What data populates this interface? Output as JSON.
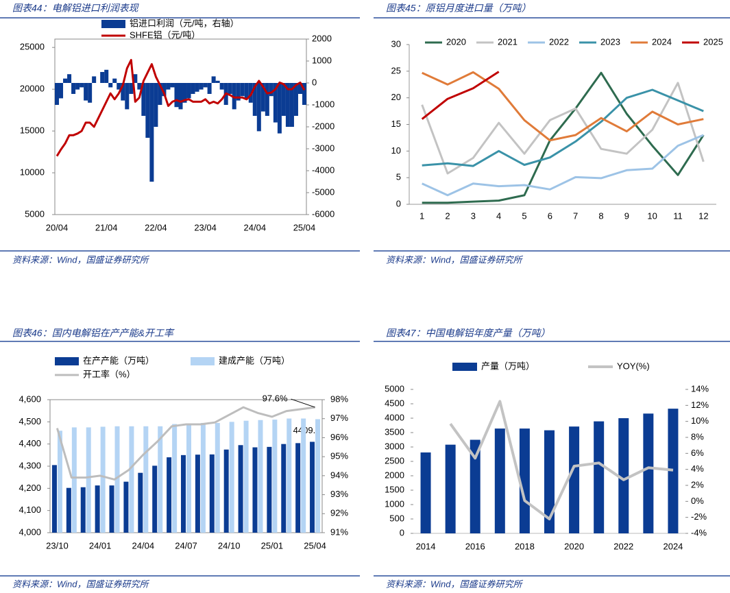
{
  "chart_data": [
    {
      "type": "combo",
      "title": "图表44：电解铝进口利润表现",
      "source": "资料来源：Wind，国盛证券研究所",
      "categories": [
        "20/04",
        null,
        null,
        null,
        null,
        null,
        null,
        null,
        null,
        null,
        null,
        null,
        "21/04",
        null,
        null,
        null,
        null,
        null,
        null,
        null,
        null,
        null,
        null,
        null,
        "22/04",
        null,
        null,
        null,
        null,
        null,
        null,
        null,
        null,
        null,
        null,
        null,
        "23/04",
        null,
        null,
        null,
        null,
        null,
        null,
        null,
        null,
        null,
        null,
        null,
        "24/04",
        null,
        null,
        null,
        null,
        null,
        null,
        null,
        null,
        null,
        null,
        null,
        "25/04"
      ],
      "series": [
        {
          "name": "铝进口利润（元/吨，右轴）",
          "type": "bar",
          "axis": "y2",
          "color": "#0b3c93",
          "values": [
            -1000,
            -700,
            200,
            400,
            -500,
            -300,
            -200,
            -800,
            -900,
            300,
            0,
            500,
            600,
            -200,
            200,
            -300,
            -800,
            -1200,
            -500,
            400,
            -300,
            -1500,
            -2500,
            -4500,
            -2000,
            -1000,
            -600,
            -300,
            -200,
            -1100,
            -1200,
            -900,
            -700,
            -500,
            -400,
            -300,
            -200,
            -500,
            300,
            100,
            -300,
            -1000,
            -500,
            -1200,
            -800,
            -600,
            -700,
            -900,
            -1500,
            -2200,
            -1300,
            -1500,
            -600,
            -1800,
            -2300,
            -1500,
            -2000,
            -2000,
            -1500,
            -500,
            -1000
          ]
        },
        {
          "name": "SHFE铝（元/吨）",
          "type": "line",
          "color": "#c00000",
          "values": [
            12000,
            12800,
            13500,
            14500,
            14500,
            14700,
            15000,
            16000,
            16000,
            15500,
            16500,
            17500,
            18500,
            19500,
            18800,
            19500,
            20500,
            22500,
            23500,
            18500,
            19000,
            21000,
            22000,
            23000,
            21500,
            20500,
            19500,
            18000,
            18500,
            18700,
            18500,
            18700,
            18800,
            18500,
            18500,
            18500,
            18800,
            18300,
            18500,
            18300,
            18800,
            19500,
            19300,
            19000,
            19000,
            19000,
            18800,
            19300,
            20300,
            21000,
            20300,
            19500,
            19600,
            20000,
            20800,
            20600,
            20000,
            20000,
            20500,
            20800,
            19900
          ]
        }
      ],
      "ylim": [
        5000,
        26000
      ],
      "yticks": [
        5000,
        10000,
        15000,
        20000,
        25000
      ],
      "y2lim": [
        -6000,
        2000
      ],
      "y2ticks": [
        -6000,
        -5000,
        -4000,
        -3000,
        -2000,
        -1000,
        0,
        1000,
        2000
      ]
    },
    {
      "type": "line",
      "title": "图表45：原铝月度进口量（万吨）",
      "source": "资料来源：Wind，国盛证券研究所",
      "categories": [
        "1",
        "2",
        "3",
        "4",
        "5",
        "6",
        "7",
        "8",
        "9",
        "10",
        "11",
        "12"
      ],
      "series": [
        {
          "name": "2020",
          "color": "#2e6b4f",
          "values": [
            0.3,
            0.3,
            0.5,
            0.7,
            1.7,
            12,
            18,
            24.7,
            17,
            11,
            5.5,
            13
          ]
        },
        {
          "name": "2021",
          "color": "#c3c3c3",
          "values": [
            18.7,
            5.8,
            8.7,
            15.3,
            9.5,
            15.8,
            18,
            10.4,
            9.5,
            14,
            22.8,
            8
          ]
        },
        {
          "name": "2022",
          "color": "#9dc3e6",
          "values": [
            3.9,
            1.7,
            3.9,
            3.4,
            3.6,
            2.8,
            5.1,
            4.9,
            6.4,
            6.7,
            11,
            13
          ]
        },
        {
          "name": "2023",
          "color": "#3a92a8",
          "values": [
            7.3,
            7.7,
            7.2,
            10,
            7.4,
            8.8,
            11.8,
            15.5,
            20,
            21.5,
            19.5,
            17.5
          ]
        },
        {
          "name": "2024",
          "color": "#e07b39",
          "values": [
            24.7,
            22.5,
            24.8,
            21.7,
            15.8,
            12,
            13,
            16.2,
            13.7,
            17.4,
            15,
            16
          ]
        },
        {
          "name": "2025",
          "color": "#c00000",
          "values": [
            16,
            19.8,
            21.8,
            24.9,
            null,
            null,
            null,
            null,
            null,
            null,
            null,
            null
          ]
        }
      ],
      "ylim": [
        0,
        30
      ],
      "yticks": [
        0,
        5,
        10,
        15,
        20,
        25,
        30
      ]
    },
    {
      "type": "combo",
      "title": "图表46：国内电解铝在产产能&开工率",
      "source": "资料来源：Wind，国盛证券研究所",
      "categories": [
        "23/10",
        null,
        null,
        "24/01",
        null,
        null,
        "24/04",
        null,
        null,
        "24/07",
        null,
        null,
        "24/10",
        null,
        null,
        "25/01",
        null,
        null,
        "25/04"
      ],
      "series": [
        {
          "name": "在产产能（万吨）",
          "type": "bar",
          "color": "#0b3c93",
          "data_labels": "last",
          "values": [
            4305,
            4202,
            4205,
            4213,
            4213,
            4230,
            4270,
            4302,
            4340,
            4350,
            4352,
            4353,
            4375,
            4395,
            4385,
            4387,
            4400,
            4404,
            4409.9
          ]
        },
        {
          "name": "建成产能（万吨）",
          "type": "bar",
          "color": "#b4d4f4",
          "values": [
            4460,
            4475,
            4475,
            4478,
            4480,
            4480,
            4480,
            4480,
            4490,
            4492,
            4495,
            4495,
            4500,
            4505,
            4508,
            4510,
            4515,
            4515,
            4512
          ]
        },
        {
          "name": "开工率（%）",
          "type": "line",
          "axis": "y2",
          "color": "#bdbdbd",
          "values": [
            96.5,
            93.9,
            93.9,
            94.0,
            93.8,
            94.3,
            95.1,
            95.8,
            96.6,
            96.7,
            96.7,
            96.8,
            97.2,
            97.6,
            97.3,
            97.1,
            97.4,
            97.5,
            97.6
          ],
          "value_labels": [
            null,
            null,
            null,
            null,
            null,
            null,
            null,
            null,
            null,
            null,
            null,
            null,
            null,
            null,
            null,
            null,
            null,
            null,
            "97.6%"
          ]
        }
      ],
      "ylim": [
        4000,
        4600
      ],
      "yticks": [
        {
          "value": 4000,
          "label": "4,000"
        },
        {
          "value": 4100,
          "label": "4,100"
        },
        {
          "value": 4200,
          "label": "4,200"
        },
        {
          "value": 4300,
          "label": "4,300"
        },
        {
          "value": 4400,
          "label": "4,400"
        },
        {
          "value": 4500,
          "label": "4,500"
        },
        {
          "value": 4600,
          "label": "4,600"
        }
      ],
      "y2lim": [
        91,
        98
      ],
      "y2ticks": [
        {
          "value": 91,
          "label": "91%"
        },
        {
          "value": 92,
          "label": "92%"
        },
        {
          "value": 93,
          "label": "93%"
        },
        {
          "value": 94,
          "label": "94%"
        },
        {
          "value": 95,
          "label": "95%"
        },
        {
          "value": 96,
          "label": "96%"
        },
        {
          "value": 97,
          "label": "97%"
        },
        {
          "value": 98,
          "label": "98%"
        }
      ]
    },
    {
      "type": "combo",
      "title": "图表47：中国电解铝年度产量（万吨）",
      "source": "资料来源：Wind，国盛证券研究所",
      "categories": [
        "2014",
        null,
        "2016",
        null,
        "2018",
        null,
        "2020",
        null,
        "2022",
        null,
        "2024"
      ],
      "series": [
        {
          "name": "产量（万吨）",
          "type": "bar",
          "color": "#0b3c93",
          "values": [
            2810,
            3080,
            3250,
            3640,
            3640,
            3580,
            3710,
            3890,
            4000,
            4160,
            4330
          ]
        },
        {
          "name": "YOY(%)",
          "type": "line",
          "axis": "y2",
          "color": "#c3c3c3",
          "values": [
            null,
            9.7,
            5.4,
            12.5,
            0.1,
            -2.2,
            4.4,
            4.8,
            2.7,
            4.2,
            3.9
          ]
        }
      ],
      "ylim": [
        0,
        5000
      ],
      "yticks": [
        0,
        500,
        1000,
        1500,
        2000,
        2500,
        3000,
        3500,
        4000,
        4500,
        5000
      ],
      "y2lim": [
        -4,
        14
      ],
      "y2ticks": [
        {
          "value": -4,
          "label": "-4%"
        },
        {
          "value": -2,
          "label": "-2%"
        },
        {
          "value": 0,
          "label": "0%"
        },
        {
          "value": 2,
          "label": "2%"
        },
        {
          "value": 4,
          "label": "4%"
        },
        {
          "value": 6,
          "label": "6%"
        },
        {
          "value": 8,
          "label": "8%"
        },
        {
          "value": 10,
          "label": "10%"
        },
        {
          "value": 12,
          "label": "12%"
        },
        {
          "value": 14,
          "label": "14%"
        }
      ]
    }
  ]
}
